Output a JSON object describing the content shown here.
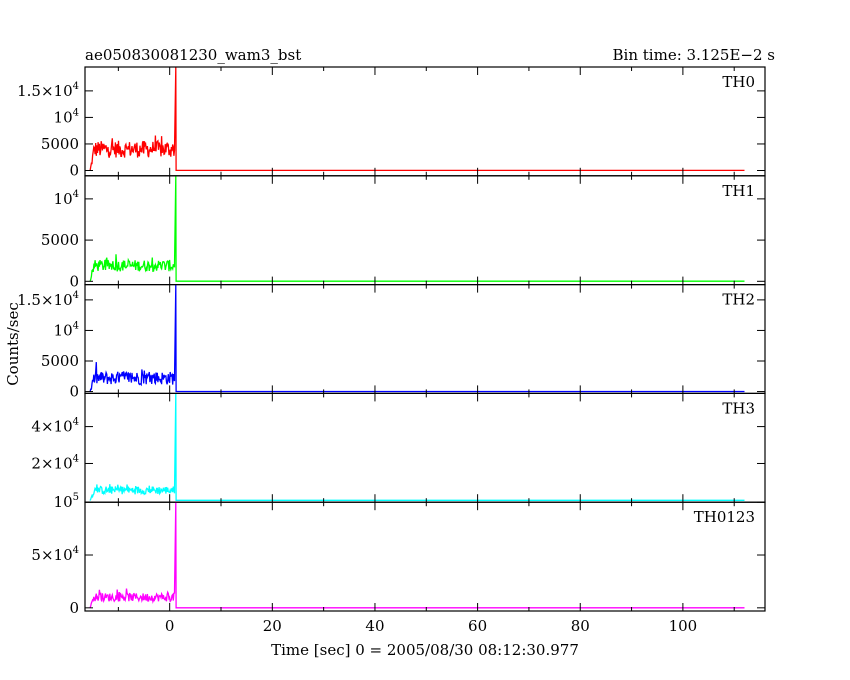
{
  "chart_data": {
    "type": "line",
    "title": "ae050830081230_wam3_bst",
    "subtitle": "Bin time: 3.125E−2 s",
    "xlabel": "Time [sec] 0 = 2005/08/30 08:12:30.977",
    "ylabel": "Counts/sec",
    "xlim": [
      -16.5,
      116
    ],
    "x_ticks": [
      {
        "value": 0,
        "label": "0"
      },
      {
        "value": 20,
        "label": "20"
      },
      {
        "value": 40,
        "label": "40"
      },
      {
        "value": 60,
        "label": "60"
      },
      {
        "value": 80,
        "label": "80"
      },
      {
        "value": 100,
        "label": "100"
      }
    ],
    "panels": [
      {
        "name": "TH0",
        "color": "#ff0000",
        "ylim": [
          -1000,
          19500
        ],
        "y_ticks": [
          {
            "value": 0,
            "base": "0",
            "exp": ""
          },
          {
            "value": 5000,
            "base": "5000",
            "exp": ""
          },
          {
            "value": 10000,
            "base": "10",
            "exp": "4"
          },
          {
            "value": 15000,
            "base": "1.5×10",
            "exp": "4"
          }
        ],
        "pre_start": -15.5,
        "pre_end": 1.0,
        "pre_level": 4000,
        "pre_noise": 1600,
        "spike_time": 1.2,
        "spike_peak": 19500,
        "post_level": 20,
        "end_time": 112
      },
      {
        "name": "TH1",
        "color": "#00ff00",
        "ylim": [
          -400,
          12800
        ],
        "y_ticks": [
          {
            "value": 0,
            "base": "0",
            "exp": ""
          },
          {
            "value": 5000,
            "base": "5000",
            "exp": ""
          },
          {
            "value": 10000,
            "base": "10",
            "exp": "4"
          }
        ],
        "pre_start": -15.5,
        "pre_end": 1.0,
        "pre_level": 1900,
        "pre_noise": 700,
        "spike_time": 1.2,
        "spike_peak": 12800,
        "post_level": 10,
        "end_time": 112
      },
      {
        "name": "TH2",
        "color": "#0000ff",
        "ylim": [
          -300,
          17500
        ],
        "y_ticks": [
          {
            "value": 0,
            "base": "0",
            "exp": ""
          },
          {
            "value": 5000,
            "base": "5000",
            "exp": ""
          },
          {
            "value": 10000,
            "base": "10",
            "exp": "4"
          },
          {
            "value": 15000,
            "base": "1.5×10",
            "exp": "4"
          }
        ],
        "pre_start": -15.5,
        "pre_end": 1.0,
        "pre_level": 2200,
        "pre_noise": 1100,
        "spike_time": 1.2,
        "spike_peak": 17500,
        "post_level": 10,
        "end_time": 112
      },
      {
        "name": "TH3",
        "color": "#00ffff",
        "ylim": [
          -1000,
          58000
        ],
        "y_ticks": [
          {
            "value": 20000,
            "base": "2×10",
            "exp": "4"
          },
          {
            "value": 40000,
            "base": "4×10",
            "exp": "4"
          }
        ],
        "pre_start": -15.5,
        "pre_end": 1.0,
        "pre_level": 5500,
        "pre_noise": 2200,
        "spike_time": 1.2,
        "spike_peak": 58000,
        "post_level": 30,
        "end_time": 112
      },
      {
        "name": "TH0123",
        "color": "#ff00ff",
        "ylim": [
          -3000,
          100000
        ],
        "y_ticks": [
          {
            "value": 0,
            "base": "0",
            "exp": ""
          },
          {
            "value": 50000,
            "base": "5×10",
            "exp": "4"
          },
          {
            "value": 100000,
            "base": "10",
            "exp": "5"
          }
        ],
        "pre_start": -15.5,
        "pre_end": 1.0,
        "pre_level": 10000,
        "pre_noise": 4000,
        "spike_time": 1.2,
        "spike_peak": 100000,
        "post_level": 60,
        "end_time": 112
      }
    ]
  }
}
